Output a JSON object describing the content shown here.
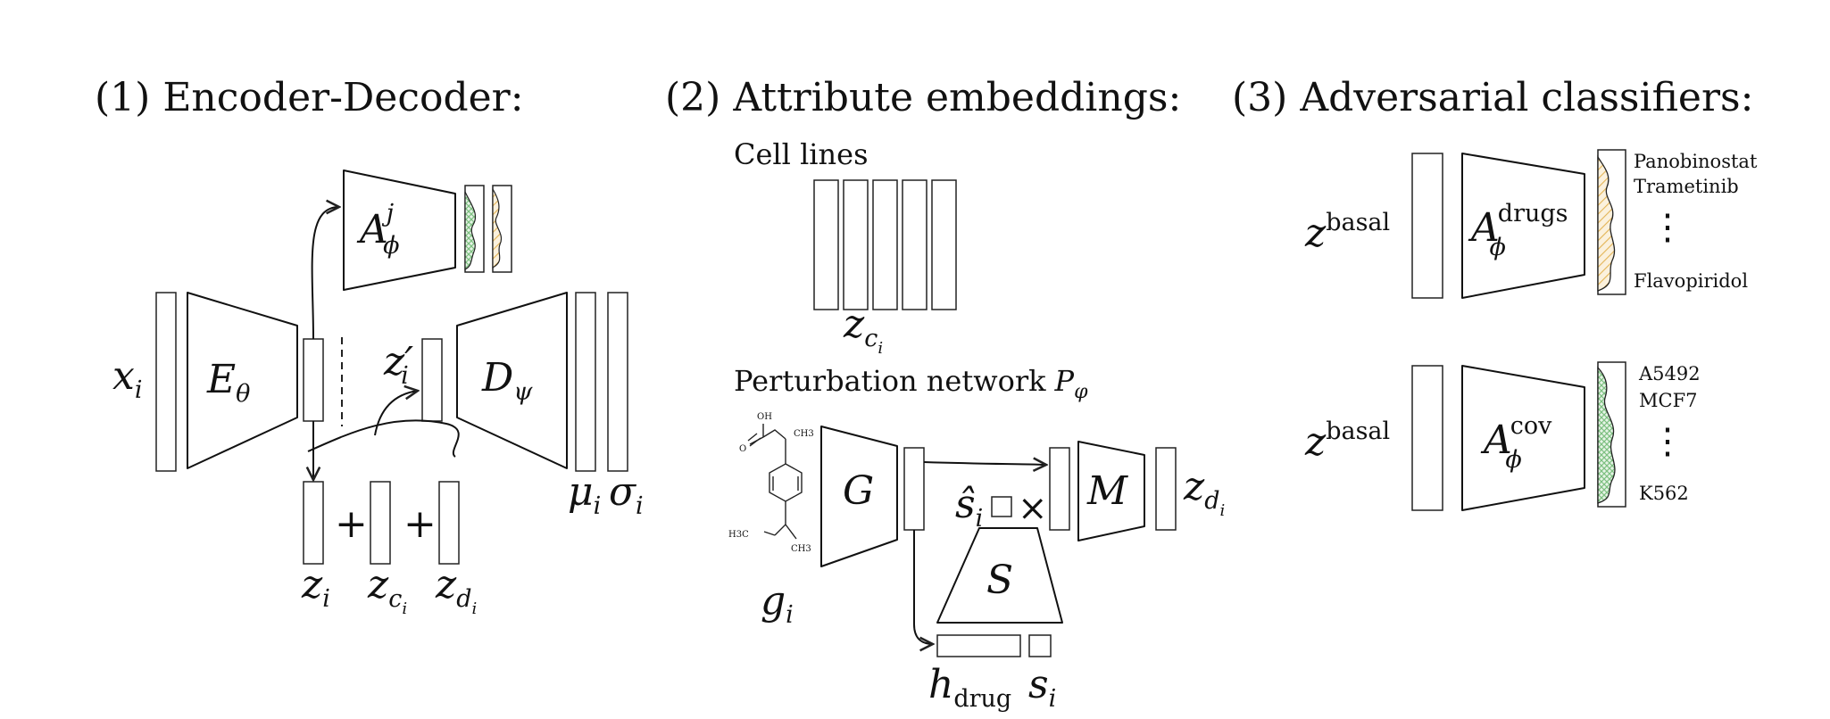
{
  "headings": {
    "encoder_decoder": "(1) Encoder-Decoder:",
    "attribute_embeddings": "(2) Attribute embeddings:",
    "adversarial_classifiers": "(3) Adversarial classifiers:"
  },
  "section1": {
    "x": "x",
    "x_sub": "i",
    "encoder": "E",
    "encoder_sub": "θ",
    "adversary": "A",
    "adversary_sup": "j",
    "adversary_sub": "ϕ",
    "z_prime": "z′",
    "z_prime_sub": "i",
    "decoder": "D",
    "decoder_sub": "ψ",
    "mu": "μ",
    "mu_sub": "i",
    "sigma": "σ",
    "sigma_sub": "i",
    "z": "z",
    "z_sub": "i",
    "zc": "z",
    "zc_sub": "c",
    "zc_subsub": "i",
    "zd": "z",
    "zd_sub": "d",
    "zd_subsub": "i",
    "plus": "+"
  },
  "section2": {
    "cell_lines_label": "Cell lines",
    "zc": "z",
    "zc_sub": "c",
    "zc_subsub": "i",
    "perturbation_label": "Perturbation network",
    "perturbation_symbol": "P",
    "perturbation_sub": "φ",
    "molecule_labels": [
      "OH",
      "O",
      "CH3",
      "H3C",
      "CH3"
    ],
    "g": "g",
    "g_sub": "i",
    "G": "G",
    "s_hat": "ŝ",
    "s_hat_sub": "i",
    "times": "×",
    "M": "M",
    "S": "S",
    "zd": "z",
    "zd_sub": "d",
    "zd_subsub": "i",
    "h": "h",
    "h_sub": "drug",
    "s": "s",
    "s_sub": "i"
  },
  "section3": {
    "drugs_z": "z",
    "drugs_z_sup": "basal",
    "drugs_A": "A",
    "drugs_A_sup": "drugs",
    "drugs_A_sub": "ϕ",
    "drugs_labels": [
      "Panobinostat",
      "Trametinib",
      "Flavopiridol"
    ],
    "cov_z": "z",
    "cov_z_sup": "basal",
    "cov_A": "A",
    "cov_A_sup": "cov",
    "cov_A_sub": "ϕ",
    "cov_labels": [
      "A5492",
      "MCF7",
      "K562"
    ],
    "ellipsis": "⋮"
  },
  "colors": {
    "red": "#e07a85",
    "blue": "#6f8fd0",
    "green": "#8cc78e",
    "yellow": "#e3b455",
    "purple": "#a06ad0",
    "lightgreen": "#b9ddb9"
  }
}
